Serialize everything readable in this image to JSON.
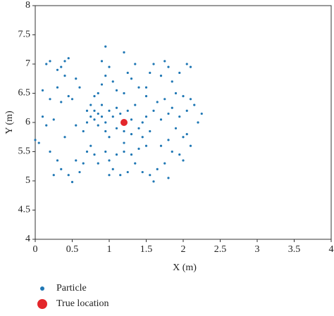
{
  "chart_data": {
    "type": "scatter",
    "xlabel": "X (m)",
    "ylabel": "Y (m)",
    "xlim": [
      0,
      4
    ],
    "ylim": [
      4,
      8
    ],
    "xticks": [
      0,
      0.5,
      1,
      1.5,
      2,
      2.5,
      3,
      3.5,
      4
    ],
    "yticks": [
      4,
      4.5,
      5,
      5.5,
      6,
      6.5,
      7,
      7.5,
      8
    ],
    "grid": false,
    "legend": "below",
    "series": [
      {
        "name": "Particle",
        "color": "#1f77b4",
        "size": 1.6,
        "x": [
          0.2,
          0.15,
          0.3,
          0.35,
          0.4,
          0.45,
          0.4,
          0.3,
          0.1,
          0.2,
          0.35,
          0.45,
          0.5,
          0.6,
          0.55,
          0.1,
          0.15,
          0.25,
          0.0,
          0.05,
          0.2,
          0.3,
          0.35,
          0.25,
          0.45,
          0.5,
          0.55,
          0.6,
          0.4,
          0.55,
          0.65,
          0.7,
          0.75,
          0.8,
          0.85,
          0.9,
          0.95,
          0.85,
          0.8,
          0.75,
          0.9,
          1.0,
          1.05,
          1.1,
          1.15,
          0.95,
          1.0,
          1.1,
          1.2,
          1.25,
          1.3,
          1.35,
          1.3,
          1.4,
          1.45,
          1.5,
          0.8,
          0.85,
          0.9,
          0.95,
          0.9,
          0.95,
          1.0,
          1.05,
          1.1,
          1.2,
          1.25,
          1.2,
          1.3,
          1.35,
          1.5,
          1.55,
          1.6,
          1.7,
          1.75,
          1.8,
          1.85,
          1.95,
          2.05,
          2.1,
          2.0,
          2.1,
          1.9,
          1.75,
          1.65,
          1.6,
          1.7,
          1.8,
          1.85,
          1.95,
          2.05,
          2.15,
          2.25,
          2.2,
          1.9,
          2.0,
          2.05,
          1.8,
          1.7,
          1.85,
          1.95,
          2.0,
          2.1,
          1.75,
          1.65,
          1.55,
          1.6,
          1.45,
          1.35,
          1.3,
          1.2,
          1.1,
          1.0,
          0.95,
          0.85,
          0.8,
          0.75,
          0.7,
          0.65,
          1.05,
          1.15,
          1.25,
          1.4,
          1.5,
          1.45,
          1.55,
          1.2,
          1.0,
          1.8,
          1.5,
          1.4,
          0.7
        ],
        "y": [
          7.05,
          7.0,
          6.9,
          6.95,
          7.05,
          7.1,
          6.8,
          6.6,
          6.55,
          6.4,
          6.35,
          6.45,
          6.4,
          6.6,
          6.75,
          6.1,
          5.95,
          6.05,
          5.7,
          5.65,
          5.5,
          5.35,
          5.2,
          5.1,
          5.1,
          4.98,
          5.35,
          5.15,
          5.75,
          5.95,
          5.85,
          6.0,
          6.1,
          6.05,
          6.15,
          6.1,
          6.0,
          5.95,
          6.2,
          6.3,
          6.3,
          6.2,
          6.1,
          6.25,
          6.15,
          5.85,
          5.75,
          5.9,
          5.85,
          6.2,
          6.05,
          6.3,
          5.8,
          5.9,
          6.0,
          6.1,
          6.45,
          6.5,
          6.65,
          6.8,
          7.05,
          7.3,
          6.95,
          6.7,
          6.55,
          6.5,
          6.85,
          7.2,
          6.75,
          7.0,
          6.6,
          6.85,
          7.0,
          6.8,
          7.05,
          6.95,
          6.7,
          6.85,
          7.0,
          6.95,
          6.45,
          6.4,
          6.5,
          6.4,
          6.35,
          6.2,
          6.05,
          6.15,
          6.25,
          6.1,
          6.2,
          6.3,
          6.15,
          6.0,
          5.9,
          5.75,
          5.8,
          5.7,
          5.6,
          5.5,
          5.45,
          5.35,
          5.6,
          5.3,
          5.2,
          5.1,
          4.99,
          5.15,
          5.3,
          5.45,
          5.5,
          5.45,
          5.35,
          5.5,
          5.3,
          5.45,
          5.6,
          5.5,
          5.3,
          5.2,
          5.1,
          5.15,
          5.55,
          5.6,
          5.75,
          5.85,
          5.65,
          5.1,
          5.05,
          6.45,
          6.6,
          6.2
        ]
      },
      {
        "name": "True location",
        "color": "#e3262b",
        "size": 5,
        "x": [
          1.2
        ],
        "y": [
          6.0
        ]
      }
    ]
  }
}
